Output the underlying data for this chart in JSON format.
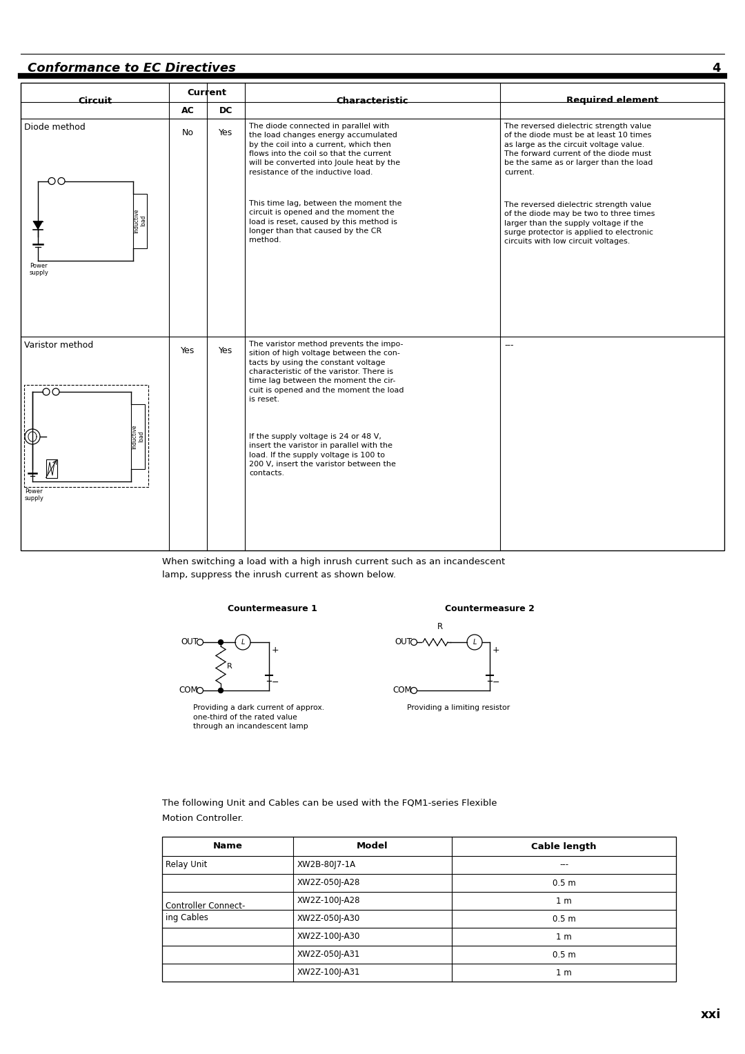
{
  "page_title": "Conformance to EC Directives",
  "page_number": "4",
  "page_footer": "xxi",
  "bg_color": "#ffffff",
  "char_text1_p1": "The diode connected in parallel with\nthe load changes energy accumulated\nby the coil into a current, which then\nflows into the coil so that the current\nwill be converted into Joule heat by the\nresistance of the inductive load.",
  "char_text1_p2": "This time lag, between the moment the\ncircuit is opened and the moment the\nload is reset, caused by this method is\nlonger than that caused by the CR\nmethod.",
  "req_text1_p1": "The reversed dielectric strength value\nof the diode must be at least 10 times\nas large as the circuit voltage value.\nThe forward current of the diode must\nbe the same as or larger than the load\ncurrent.",
  "req_text1_p2": "The reversed dielectric strength value\nof the diode may be two to three times\nlarger than the supply voltage if the\nsurge protector is applied to electronic\ncircuits with low circuit voltages.",
  "char_text2_p1": "The varistor method prevents the impo-\nsition of high voltage between the con-\ntacts by using the constant voltage\ncharacteristic of the varistor. There is\ntime lag between the moment the cir-\ncuit is opened and the moment the load\nis reset.",
  "char_text2_p2": "If the supply voltage is 24 or 48 V,\ninsert the varistor in parallel with the\nload. If the supply voltage is 100 to\n200 V, insert the varistor between the\ncontacts.",
  "inrush_text": "When switching a load with a high inrush current such as an incandescent\nlamp, suppress the inrush current as shown below.",
  "countermeasure1_title": "Countermeasure 1",
  "countermeasure1_caption": "Providing a dark current of approx.\none-third of the rated value\nthrough an incandescent lamp",
  "countermeasure2_title": "Countermeasure 2",
  "countermeasure2_caption": "Providing a limiting resistor",
  "cables_text_line1": "The following Unit and Cables can be used with the FQM1-series Flexible",
  "cables_text_line2": "Motion Controller.",
  "cables_rows": [
    [
      "Relay Unit",
      "XW2B-80J7-1A",
      "---"
    ],
    [
      "Controller Connect-\ning Cables",
      "XW2Z-050J-A28",
      "0.5 m"
    ],
    [
      "",
      "XW2Z-100J-A28",
      "1 m"
    ],
    [
      "",
      "XW2Z-050J-A30",
      "0.5 m"
    ],
    [
      "",
      "XW2Z-100J-A30",
      "1 m"
    ],
    [
      "",
      "XW2Z-050J-A31",
      "0.5 m"
    ],
    [
      "",
      "XW2Z-100J-A31",
      "1 m"
    ]
  ]
}
